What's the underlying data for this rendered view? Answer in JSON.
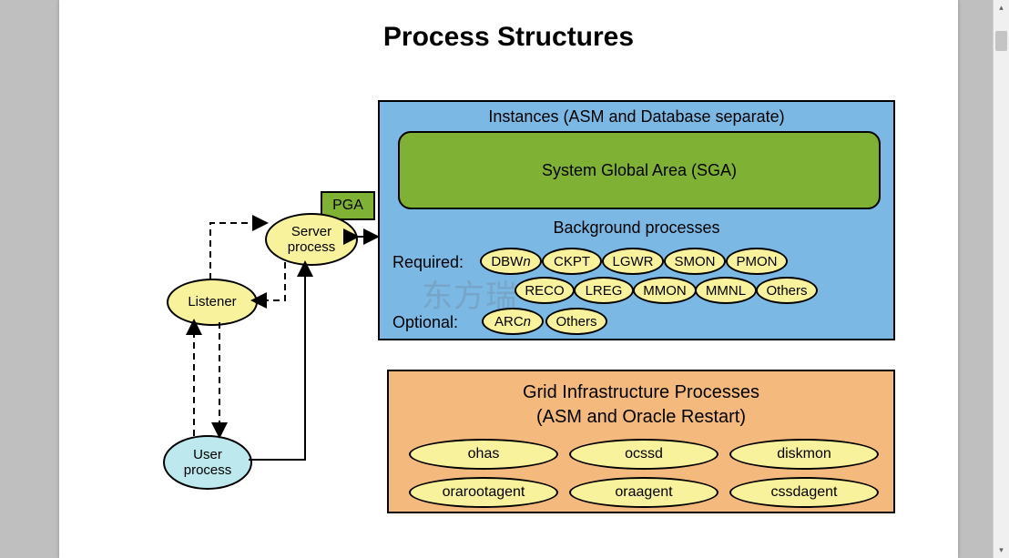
{
  "title": "Process Structures",
  "instances": {
    "title": "Instances (ASM and Database separate)",
    "sga": "System Global Area (SGA)",
    "bg_heading": "Background processes",
    "required_label": "Required:",
    "optional_label": "Optional:",
    "required_row1": [
      "DBWn",
      "CKPT",
      "LGWR",
      "SMON",
      "PMON"
    ],
    "required_row2": [
      "RECO",
      "LREG",
      "MMON",
      "MMNL",
      "Others"
    ],
    "optional_row": [
      "ARCn",
      "Others"
    ],
    "colors": {
      "box_bg": "#7cb8e4",
      "sga_bg": "#7fb135",
      "pill_bg": "#f9f29c",
      "border": "#000000"
    }
  },
  "grid": {
    "title_line1": "Grid Infrastructure Processes",
    "title_line2": "(ASM and Oracle Restart)",
    "row1": [
      "ohas",
      "ocssd",
      "diskmon"
    ],
    "row2": [
      "orarootagent",
      "oraagent",
      "cssdagent"
    ],
    "bg": "#f4b97d"
  },
  "left": {
    "pga": "PGA",
    "server": "Server process",
    "listener": "Listener",
    "user": "User process",
    "user_bg": "#bce8ee"
  },
  "watermark": "东方瑞",
  "page_bg": "#ffffff",
  "viewport_bg": "#bfbfbf"
}
